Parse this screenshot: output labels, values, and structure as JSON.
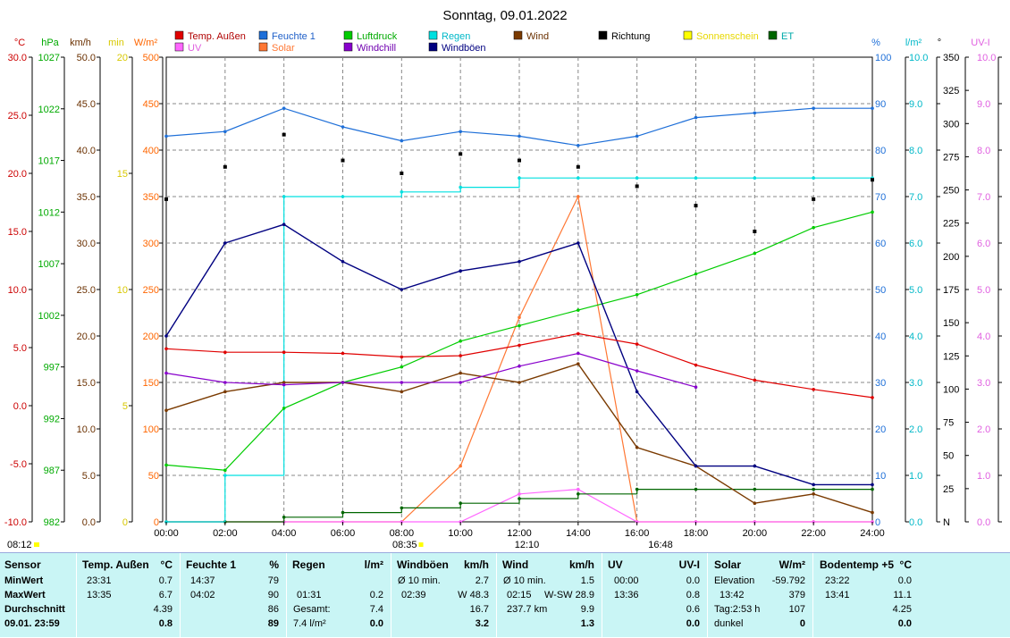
{
  "title": "Sonntag, 09.01.2022",
  "legend": [
    {
      "label": "Temp. Außen",
      "color": "#e00000",
      "textColor": "#b00000"
    },
    {
      "label": "Feuchte 1",
      "color": "#1e6fd8",
      "textColor": "#1e5fc8"
    },
    {
      "label": "Luftdruck",
      "color": "#00cc00",
      "textColor": "#00aa00"
    },
    {
      "label": "Regen",
      "color": "#00e0e0",
      "textColor": "#00b8c8"
    },
    {
      "label": "Wind",
      "color": "#7a3a00",
      "textColor": "#6a3000"
    },
    {
      "label": "Richtung",
      "color": "#000000",
      "textColor": "#000000"
    },
    {
      "label": "Sonnenschein",
      "color": "#ffff00",
      "textColor": "#e8d800"
    },
    {
      "label": "ET",
      "color": "#006600",
      "textColor": "#00aaaa"
    },
    {
      "label": "UV",
      "color": "#ff66ff",
      "textColor": "#e060e0"
    },
    {
      "label": "Solar",
      "color": "#ff7733",
      "textColor": "#ff7733"
    },
    {
      "label": "Windchill",
      "color": "#8800cc",
      "textColor": "#7000b0"
    },
    {
      "label": "Windböen",
      "color": "#000080",
      "textColor": "#000080"
    }
  ],
  "axes": {
    "temp": {
      "unit": "°C",
      "color": "#cc0000",
      "ticks": [
        "30.0",
        "25.0",
        "20.0",
        "15.0",
        "10.0",
        "5.0",
        "0.0",
        "-5.0",
        "-10.0"
      ]
    },
    "pressure": {
      "unit": "hPa",
      "color": "#00aa00",
      "ticks": [
        "1027",
        "1022",
        "1017",
        "1012",
        "1007",
        "1002",
        "997",
        "992",
        "987",
        "982"
      ]
    },
    "windspeed": {
      "unit": "km/h",
      "color": "#6a3000",
      "ticks": [
        "50.0",
        "45.0",
        "40.0",
        "35.0",
        "30.0",
        "25.0",
        "20.0",
        "15.0",
        "10.0",
        "5.0",
        "0.0"
      ]
    },
    "sunmin": {
      "unit": "min",
      "color": "#d8c800",
      "ticks": [
        "20",
        "15",
        "10",
        "5",
        "0"
      ]
    },
    "solar": {
      "unit": "W/m²",
      "color": "#ff6600",
      "ticks": [
        "500",
        "450",
        "400",
        "350",
        "300",
        "250",
        "200",
        "150",
        "100",
        "50",
        "0"
      ]
    },
    "humidity": {
      "unit": "%",
      "color": "#1e6fd8",
      "ticks": [
        "100",
        "90",
        "80",
        "70",
        "60",
        "50",
        "40",
        "30",
        "20",
        "10",
        "0"
      ]
    },
    "rain": {
      "unit": "l/m²",
      "color": "#00b8c8",
      "ticks": [
        "10.0",
        "9.0",
        "8.0",
        "7.0",
        "6.0",
        "5.0",
        "4.0",
        "3.0",
        "2.0",
        "1.0",
        "0.0"
      ]
    },
    "direction": {
      "unit": "°",
      "color": "#000000",
      "ticks": [
        "350",
        "325",
        "300",
        "275",
        "250",
        "225",
        "200",
        "175",
        "150",
        "125",
        "100",
        "75",
        "50",
        "25",
        "N"
      ]
    },
    "uv": {
      "unit": "UV-I",
      "color": "#e060e0",
      "ticks": [
        "10.0",
        "9.0",
        "8.0",
        "7.0",
        "6.0",
        "5.0",
        "4.0",
        "3.0",
        "2.0",
        "1.0",
        "0.0"
      ]
    }
  },
  "xaxis": [
    "00:00",
    "02:00",
    "04:00",
    "06:00",
    "08:00",
    "10:00",
    "12:00",
    "14:00",
    "16:00",
    "18:00",
    "20:00",
    "22:00",
    "24:00"
  ],
  "sun_events": {
    "sunrise_left": "08:12",
    "sunrise": "08:35",
    "noon": "12:10",
    "sunset": "16:48"
  },
  "chart_data": {
    "type": "line",
    "title": "Sonntag, 09.01.2022",
    "x": [
      "00:00",
      "02:00",
      "04:00",
      "06:00",
      "08:00",
      "10:00",
      "12:00",
      "14:00",
      "16:00",
      "18:00",
      "20:00",
      "22:00",
      "24:00"
    ],
    "series": [
      {
        "name": "Temp. Außen",
        "unit": "°C",
        "values": [
          4.9,
          4.6,
          4.6,
          4.5,
          4.2,
          4.3,
          5.2,
          6.2,
          5.3,
          3.5,
          2.2,
          1.4,
          0.7
        ]
      },
      {
        "name": "Feuchte 1",
        "unit": "%",
        "values": [
          83,
          84,
          89,
          85,
          82,
          84,
          83,
          81,
          83,
          87,
          88,
          89,
          89
        ]
      },
      {
        "name": "Luftdruck",
        "unit": "hPa",
        "values": [
          987.5,
          987,
          993,
          995.5,
          997,
          999.5,
          1001,
          1002.5,
          1004,
          1006,
          1008,
          1010.5,
          1012
        ]
      },
      {
        "name": "Regen",
        "unit": "l/m²",
        "values": [
          0.0,
          1.0,
          7.0,
          7.0,
          7.1,
          7.2,
          7.4,
          7.4,
          7.4,
          7.4,
          7.4,
          7.4,
          7.4
        ]
      },
      {
        "name": "Wind",
        "unit": "km/h",
        "values": [
          12,
          14,
          15,
          15,
          14,
          16,
          15,
          17,
          8,
          6,
          2,
          3,
          1
        ]
      },
      {
        "name": "Windböen",
        "unit": "km/h",
        "values": [
          20,
          30,
          32,
          28,
          25,
          27,
          28,
          30,
          14,
          6,
          6,
          4,
          4
        ]
      },
      {
        "name": "Windchill",
        "unit": "°C",
        "values": [
          2.8,
          2.0,
          1.8,
          2.0,
          2.0,
          2.0,
          3.4,
          4.5,
          3.0,
          1.6,
          null,
          null,
          null
        ]
      },
      {
        "name": "Solar",
        "unit": "W/m²",
        "values": [
          0,
          0,
          0,
          0,
          0,
          60,
          220,
          350,
          0,
          0,
          0,
          0,
          0
        ]
      },
      {
        "name": "UV",
        "unit": "UV-I",
        "values": [
          0,
          0,
          0,
          0,
          0,
          0,
          0.6,
          0.7,
          0,
          0,
          0,
          0,
          0
        ]
      },
      {
        "name": "Richtung",
        "unit": "°",
        "values": [
          250,
          275,
          300,
          280,
          270,
          285,
          280,
          275,
          260,
          245,
          225,
          250,
          265
        ]
      },
      {
        "name": "ET",
        "unit": "l/m²",
        "values": [
          0,
          0,
          0.1,
          0.2,
          0.3,
          0.4,
          0.5,
          0.6,
          0.7,
          0.7,
          0.7,
          0.7,
          0.7
        ]
      }
    ],
    "ylim": {
      "temp": [
        -10,
        30
      ],
      "pressure": [
        982,
        1027
      ],
      "humidity": [
        0,
        100
      ],
      "solar": [
        0,
        500
      ],
      "rain": [
        0,
        10
      ],
      "wind": [
        0,
        50
      ],
      "direction": [
        0,
        360
      ],
      "uv": [
        0,
        10
      ]
    },
    "grid": true,
    "legend": "top"
  },
  "stats": {
    "sensor": {
      "title": "Sensor",
      "rows": [
        "MinWert",
        "MaxWert",
        "Durchschnitt",
        "09.01. 23:59"
      ]
    },
    "temp": {
      "title": "Temp. Außen",
      "unit": "°C",
      "rows": [
        [
          "23:31",
          "0.7"
        ],
        [
          "13:35",
          "6.7"
        ],
        [
          "",
          "4.39"
        ],
        [
          "",
          "0.8"
        ]
      ]
    },
    "hum": {
      "title": "Feuchte 1",
      "unit": "%",
      "rows": [
        [
          "14:37",
          "79"
        ],
        [
          "04:02",
          "90"
        ],
        [
          "",
          "86"
        ],
        [
          "",
          "89"
        ]
      ]
    },
    "rain": {
      "title": "Regen",
      "unit": "l/m²",
      "rows": [
        [
          "",
          ""
        ],
        [
          "01:31",
          "0.2"
        ],
        [
          "Gesamt:",
          "7.4"
        ],
        [
          "7.4 l/m²",
          "0.0"
        ]
      ]
    },
    "gust": {
      "title": "Windböen",
      "unit": "km/h",
      "rows": [
        [
          "Ø 10 min.",
          "2.7"
        ],
        [
          "02:39",
          "W 48.3"
        ],
        [
          "",
          "16.7"
        ],
        [
          "",
          "3.2"
        ]
      ]
    },
    "wind": {
      "title": "Wind",
      "unit": "km/h",
      "rows": [
        [
          "Ø 10 min.",
          "1.5"
        ],
        [
          "02:15",
          "W-SW 28.9"
        ],
        [
          "237.7 km",
          "9.9"
        ],
        [
          "",
          "1.3"
        ]
      ]
    },
    "uv": {
      "title": "UV",
      "unit": "UV-I",
      "rows": [
        [
          "00:00",
          "0.0"
        ],
        [
          "13:36",
          "0.8"
        ],
        [
          "",
          "0.6"
        ],
        [
          "",
          "0.0"
        ]
      ]
    },
    "solar": {
      "title": "Solar",
      "unit": "W/m²",
      "rows": [
        [
          "Elevation",
          "-59.792"
        ],
        [
          "13:42",
          "379"
        ],
        [
          "Tag:2:53 h",
          "107"
        ],
        [
          "dunkel",
          "0"
        ]
      ]
    },
    "soil": {
      "title": "Bodentemp +5",
      "unit": "°C",
      "rows": [
        [
          "23:22",
          "0.0"
        ],
        [
          "13:41",
          "11.1"
        ],
        [
          "",
          "4.25"
        ],
        [
          "",
          "0.0"
        ]
      ]
    }
  }
}
